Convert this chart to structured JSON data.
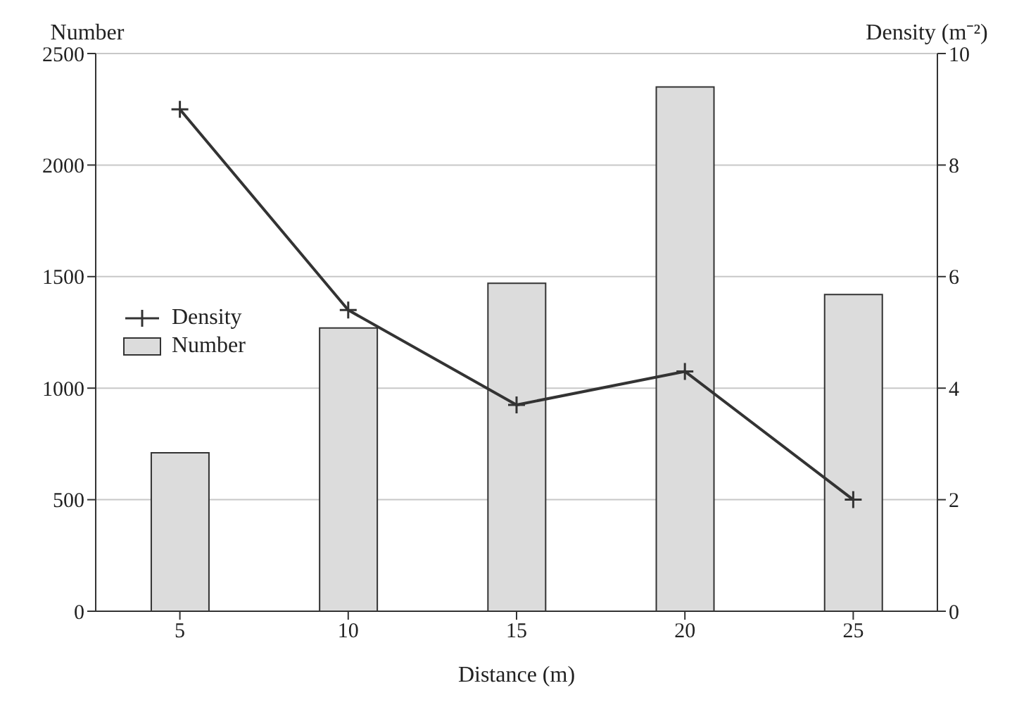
{
  "chart_data": {
    "type": "bar",
    "xlabel": "Distance (m)",
    "ylabel": "Number",
    "y2label": "Density (m⁻²)",
    "categories": [
      "5",
      "10",
      "15",
      "20",
      "25"
    ],
    "series": [
      {
        "name": "Density",
        "type": "line",
        "axis": "y2",
        "color": "#333333",
        "values": [
          9.0,
          5.4,
          3.7,
          4.3,
          2.0
        ],
        "marker": "cross"
      },
      {
        "name": "Number",
        "color": "#dcdcdc",
        "values": [
          710,
          1270,
          1470,
          2350,
          1420
        ]
      }
    ],
    "ylim": [
      0,
      2500
    ],
    "yticks": [
      0,
      500,
      1000,
      1500,
      2000,
      2500
    ],
    "y2lim": [
      0,
      10
    ],
    "y2ticks": [
      0,
      2,
      4,
      6,
      8,
      10
    ],
    "grid": "y",
    "legend": "left",
    "line_style": "solid"
  }
}
